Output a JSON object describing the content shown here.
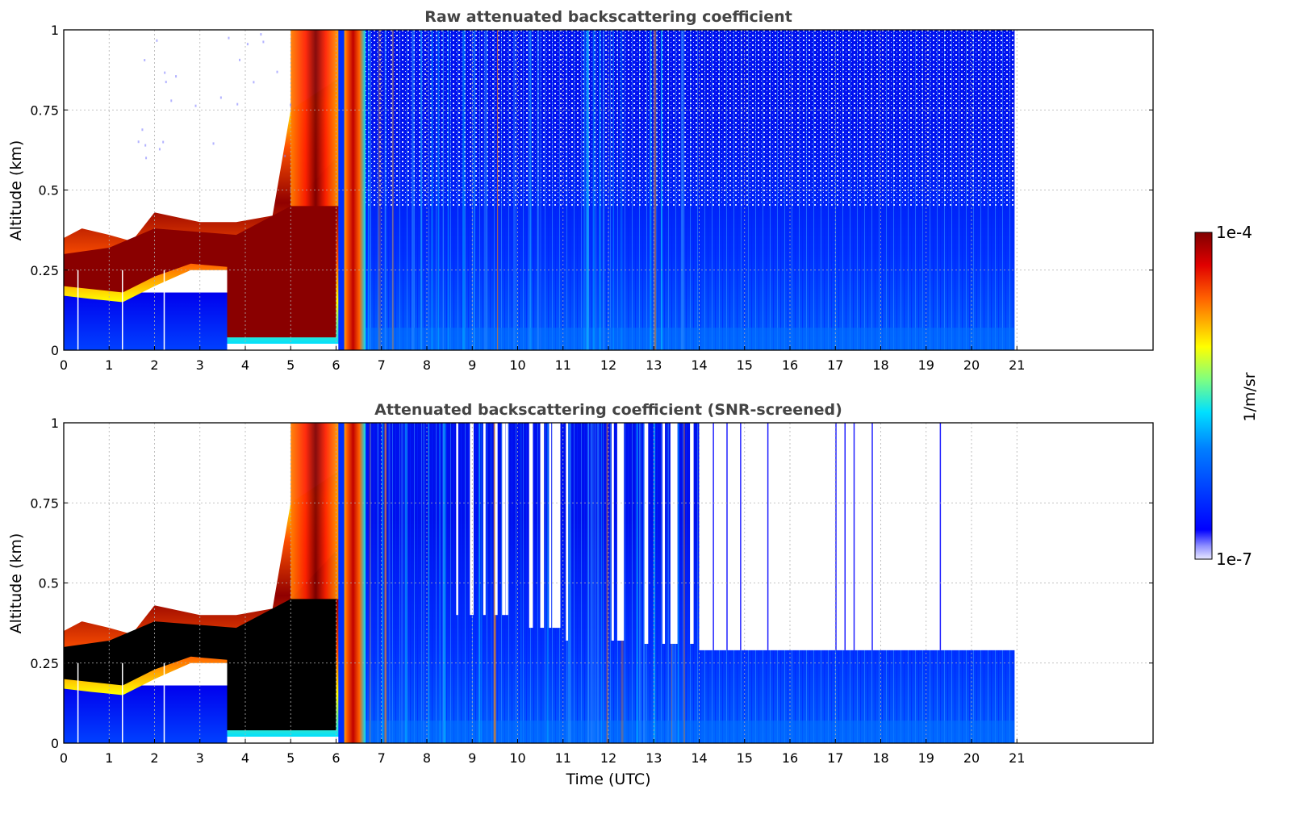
{
  "chart_data": [
    {
      "type": "heatmap",
      "title": "Raw attenuated backscattering coefficient",
      "xlabel": "",
      "ylabel": "Altitude (km)",
      "xlim": [
        0,
        24
      ],
      "ylim": [
        0,
        1
      ],
      "x_ticks": [
        "0",
        "1",
        "2",
        "3",
        "4",
        "5",
        "6",
        "7",
        "8",
        "9",
        "10",
        "11",
        "12",
        "13",
        "14",
        "15",
        "16",
        "17",
        "18",
        "19",
        "20",
        "21"
      ],
      "y_ticks": [
        "0",
        "0.25",
        "0.5",
        "0.75",
        "1"
      ],
      "grid": true,
      "data_end_time": 20.95,
      "features": {
        "cloud_layer_base_km": [
          0.15,
          0.25
        ],
        "cloud_layer_top_km": [
          0.35,
          0.45
        ],
        "cloud_period_utc": [
          0,
          6.6
        ],
        "fog_to_ground_utc": [
          3.6,
          6.6
        ],
        "dense_column_utc": [
          6.1,
          6.6
        ]
      }
    },
    {
      "type": "heatmap",
      "title": "Attenuated backscattering coefficient (SNR-screened)",
      "xlabel": "Time (UTC)",
      "ylabel": "Altitude (km)",
      "xlim": [
        0,
        24
      ],
      "ylim": [
        0,
        1
      ],
      "x_ticks": [
        "0",
        "1",
        "2",
        "3",
        "4",
        "5",
        "6",
        "7",
        "8",
        "9",
        "10",
        "11",
        "12",
        "13",
        "14",
        "15",
        "16",
        "17",
        "18",
        "19",
        "20",
        "21"
      ],
      "y_ticks": [
        "0",
        "0.25",
        "0.5",
        "0.75",
        "1"
      ],
      "grid": true,
      "data_end_time": 20.95,
      "features": {
        "screened_top_after_14utc_km": 0.29,
        "saturated_core_color": "#000000"
      }
    }
  ],
  "colorbar": {
    "label": "1/m/sr",
    "max_label": "1e-4",
    "min_label": "1e-7",
    "scale": "log",
    "range": [
      1e-07,
      0.0001
    ],
    "colormap": "jet"
  }
}
